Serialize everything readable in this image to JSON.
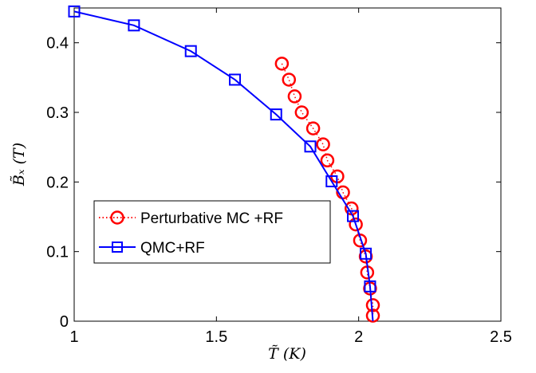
{
  "chart_data": {
    "type": "line",
    "xlabel": "T̃ (K)",
    "ylabel": "B̃ₓ (T)",
    "xlim": [
      1,
      2.5
    ],
    "ylim": [
      0,
      0.45
    ],
    "xticks": [
      "1",
      "1.5",
      "2",
      "2.5"
    ],
    "yticks": [
      "0",
      "0.1",
      "0.2",
      "0.3",
      "0.4"
    ],
    "grid": false,
    "legend_position": "center-left",
    "series": [
      {
        "name": "Perturbative MC +RF",
        "style": "dotted line with circle markers",
        "color": "#ff0000",
        "points": [
          [
            1.73,
            0.37
          ],
          [
            1.755,
            0.347
          ],
          [
            1.775,
            0.323
          ],
          [
            1.8,
            0.3
          ],
          [
            1.84,
            0.277
          ],
          [
            1.875,
            0.254
          ],
          [
            1.89,
            0.231
          ],
          [
            1.925,
            0.208
          ],
          [
            1.945,
            0.185
          ],
          [
            1.975,
            0.162
          ],
          [
            1.99,
            0.139
          ],
          [
            2.005,
            0.116
          ],
          [
            2.025,
            0.093
          ],
          [
            2.03,
            0.07
          ],
          [
            2.04,
            0.047
          ],
          [
            2.05,
            0.023
          ],
          [
            2.05,
            0.008
          ]
        ]
      },
      {
        "name": "QMC+RF",
        "style": "solid line with square markers",
        "color": "#0000ff",
        "points": [
          [
            1.0,
            0.445
          ],
          [
            1.21,
            0.425
          ],
          [
            1.41,
            0.388
          ],
          [
            1.565,
            0.347
          ],
          [
            1.71,
            0.297
          ],
          [
            1.83,
            0.251
          ],
          [
            1.905,
            0.201
          ],
          [
            1.98,
            0.151
          ],
          [
            2.025,
            0.097
          ],
          [
            2.04,
            0.05
          ],
          [
            2.05,
            0.0
          ]
        ]
      }
    ]
  }
}
